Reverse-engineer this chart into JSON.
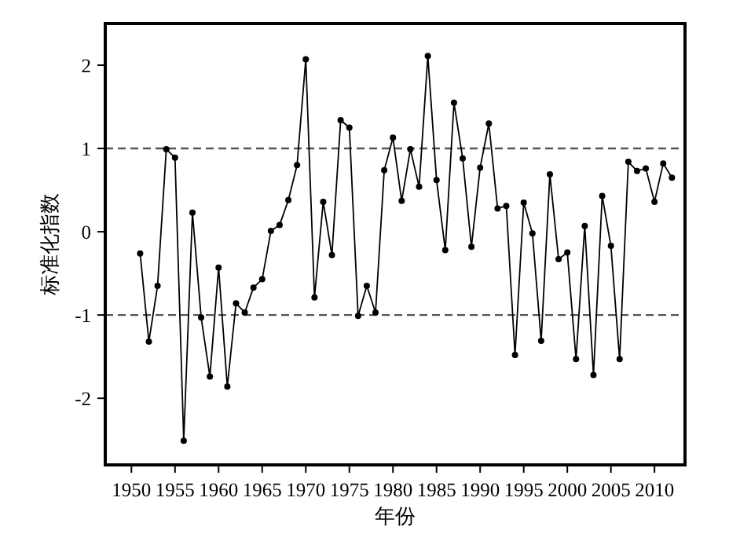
{
  "chart_data": {
    "type": "line",
    "xlabel": "年份",
    "ylabel": "标准化指数",
    "x": [
      1951,
      1952,
      1953,
      1954,
      1955,
      1956,
      1957,
      1958,
      1959,
      1960,
      1961,
      1962,
      1963,
      1964,
      1965,
      1966,
      1967,
      1968,
      1969,
      1970,
      1971,
      1972,
      1973,
      1974,
      1975,
      1976,
      1977,
      1978,
      1979,
      1980,
      1981,
      1982,
      1983,
      1984,
      1985,
      1986,
      1987,
      1988,
      1989,
      1990,
      1991,
      1992,
      1993,
      1994,
      1995,
      1996,
      1997,
      1998,
      1999,
      2000,
      2001,
      2002,
      2003,
      2004,
      2005,
      2006,
      2007,
      2008,
      2009,
      2010,
      2011,
      2012
    ],
    "values": [
      -0.26,
      -1.32,
      -0.65,
      0.99,
      0.89,
      -2.51,
      0.23,
      -1.03,
      -1.74,
      -0.43,
      -1.86,
      -0.86,
      -0.97,
      -0.67,
      -0.57,
      0.01,
      0.08,
      0.38,
      0.8,
      2.07,
      -0.79,
      0.36,
      -0.28,
      1.34,
      1.25,
      -1.01,
      -0.65,
      -0.97,
      0.74,
      1.13,
      0.37,
      0.99,
      0.54,
      2.11,
      0.62,
      -0.22,
      1.55,
      0.88,
      -0.18,
      0.77,
      1.3,
      0.28,
      0.31,
      -1.48,
      0.35,
      -0.02,
      -1.31,
      0.69,
      -0.33,
      -0.25,
      -1.53,
      0.07,
      -1.72,
      0.43,
      -0.17,
      -1.53,
      0.84,
      0.73,
      0.76,
      0.36,
      0.82,
      0.65
    ],
    "color": "#000000",
    "marker": "circle",
    "line_style": "solid",
    "xlim": [
      1947,
      2013.5
    ],
    "ylim": [
      -2.8,
      2.5
    ],
    "xticks": [
      1950,
      1955,
      1960,
      1965,
      1970,
      1975,
      1980,
      1985,
      1990,
      1995,
      2000,
      2005,
      2010
    ],
    "yticks": [
      -2,
      -1,
      0,
      1,
      2
    ],
    "ref_lines": [
      {
        "axis": "y",
        "value": 1,
        "color": "#555555",
        "line_style": "dashed"
      },
      {
        "axis": "y",
        "value": -1,
        "color": "#555555",
        "line_style": "dashed"
      }
    ]
  }
}
